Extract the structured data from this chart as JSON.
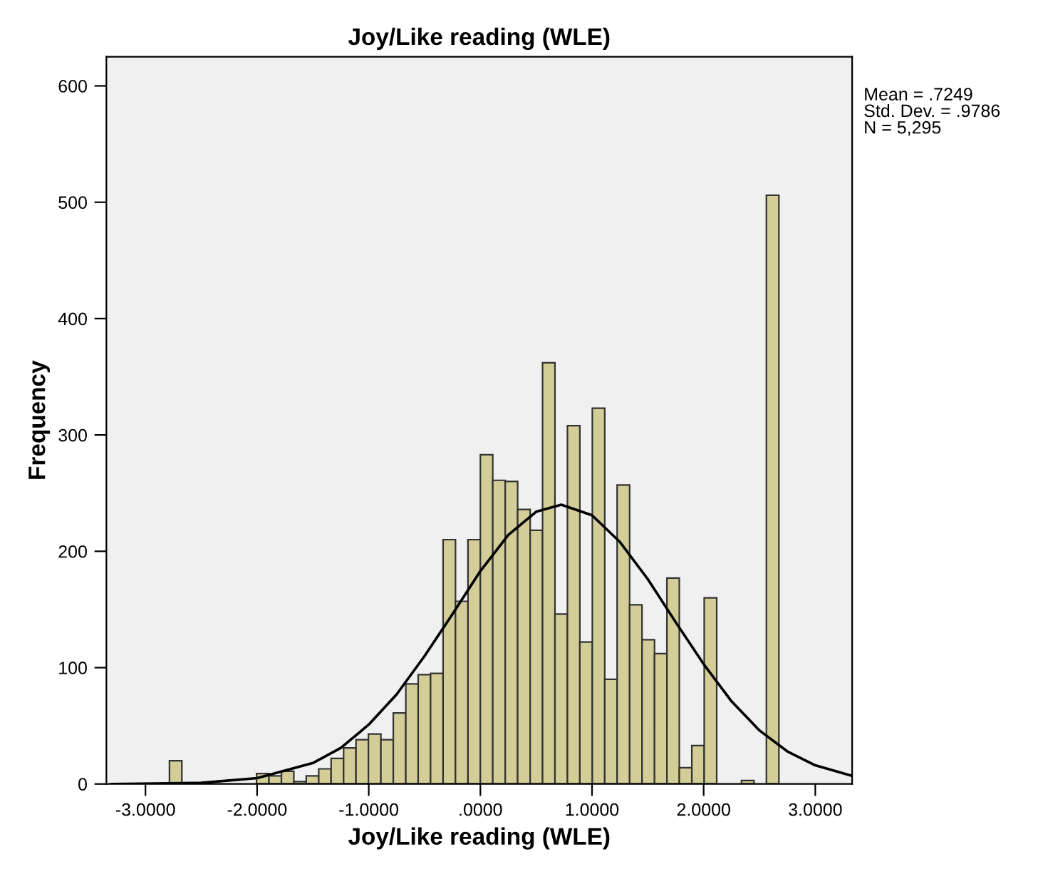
{
  "chart_data": {
    "type": "histogram",
    "title": "Joy/Like reading (WLE)",
    "xlabel": "Joy/Like reading (WLE)",
    "ylabel": "Frequency",
    "bins": [
      -2.785,
      -2.674,
      -2.562,
      -2.451,
      -2.339,
      -2.228,
      -2.117,
      -2.005,
      -1.894,
      -1.782,
      -1.671,
      -1.56,
      -1.448,
      -1.337,
      -1.225,
      -1.114,
      -1.003,
      -0.891,
      -0.78,
      -0.668,
      -0.557,
      -0.446,
      -0.334,
      -0.223,
      -0.111,
      0.0,
      0.111,
      0.223,
      0.334,
      0.446,
      0.557,
      0.668,
      0.78,
      0.891,
      1.003,
      1.114,
      1.225,
      1.337,
      1.448,
      1.56,
      1.671,
      1.782,
      1.894,
      2.005,
      2.117,
      2.228,
      2.339,
      2.451,
      2.562,
      2.674
    ],
    "values": [
      20,
      0,
      0,
      0,
      0,
      0,
      0,
      9,
      7,
      11,
      2,
      7,
      13,
      22,
      31,
      38,
      43,
      38,
      61,
      86,
      94,
      95,
      210,
      157,
      210,
      283,
      261,
      260,
      236,
      218,
      362,
      146,
      308,
      122,
      323,
      90,
      257,
      154,
      124,
      112,
      177,
      14,
      33,
      160,
      0,
      0,
      3,
      0,
      506
    ],
    "color": "#d3ce97",
    "series": [
      {
        "type": "line",
        "color": "#000000",
        "x": [
          -3.3,
          -2.5,
          -2.0,
          -1.5,
          -1.25,
          -1.0,
          -0.75,
          -0.5,
          -0.25,
          0.0,
          0.25,
          0.5,
          0.725,
          1.0,
          1.25,
          1.5,
          1.75,
          2.0,
          2.25,
          2.5,
          2.75,
          3.0,
          3.33
        ],
        "values": [
          0,
          1,
          5,
          18,
          31,
          51,
          77,
          110,
          146,
          183,
          214,
          234,
          240,
          231,
          208,
          176,
          139,
          103,
          71,
          46,
          28,
          16,
          7
        ]
      }
    ],
    "xlim": [
      -3.35,
      3.33
    ],
    "xticks": [
      {
        "value": -3,
        "label": "-3.0000"
      },
      {
        "value": -2,
        "label": "-2.0000"
      },
      {
        "value": -1,
        "label": "-1.0000"
      },
      {
        "value": 0,
        "label": ".0000"
      },
      {
        "value": 1,
        "label": "1.0000"
      },
      {
        "value": 2,
        "label": "2.0000"
      },
      {
        "value": 3,
        "label": "3.0000"
      }
    ],
    "ylim": [
      0,
      625
    ],
    "yticks": [
      0,
      100,
      200,
      300,
      400,
      500,
      600
    ],
    "grid": false,
    "annotations": [
      "Mean = .7249\nStd. Dev. = .9786\nN = 5,295"
    ]
  }
}
